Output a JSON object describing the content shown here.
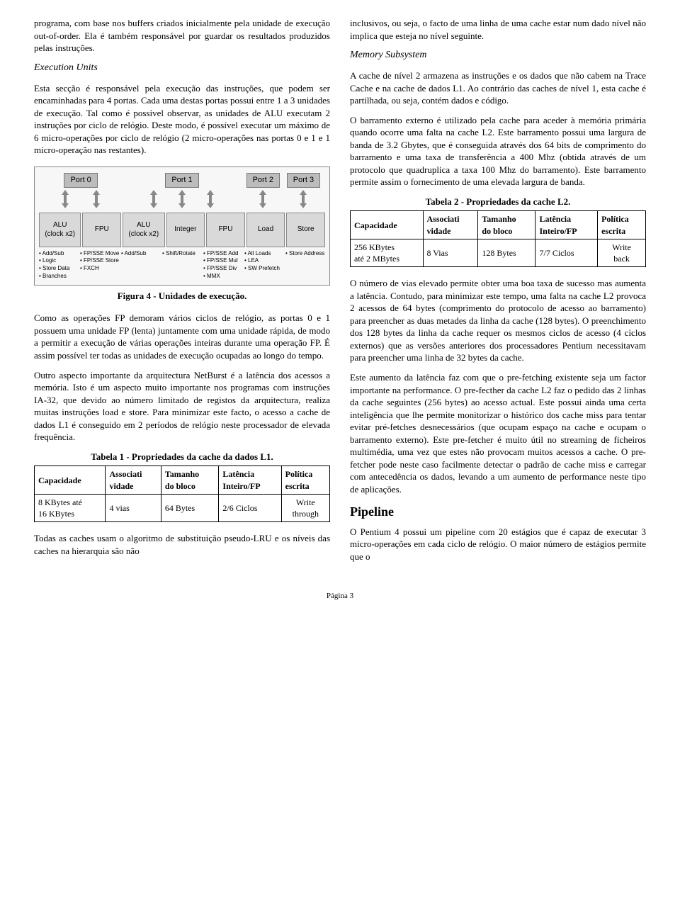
{
  "left": {
    "p1": "programa, com base nos buffers criados inicialmente pela unidade de execução out-of-order. Ela é também responsável por guardar os resultados produzidos pelas instruções.",
    "h_exec_units": "Execution Units",
    "p2": "Esta secção é responsável pela execução das instruções, que podem ser encaminhadas para 4 portas. Cada uma destas portas possui entre 1 a 3 unidades de execução. Tal como é possível observar, as unidades de ALU executam 2 instruções por ciclo de relógio. Deste modo, é possível executar um máximo de 6 micro-operações por ciclo de relógio (2 micro-operações nas portas 0 e 1 e 1 micro-operação nas restantes).",
    "fig": {
      "ports": [
        "Port 0",
        "Port 1",
        "Port 2",
        "Port 3"
      ],
      "units": [
        "ALU\n(clock x2)",
        "FPU",
        "ALU\n(clock x2)",
        "Integer",
        "FPU",
        "Load",
        "Store"
      ],
      "ops": [
        [
          "• Add/Sub",
          "• Logic",
          "• Store Data",
          "• Branches"
        ],
        [
          "• FP/SSE Move",
          "• FP/SSE Store",
          "• FXCH"
        ],
        [
          "• Add/Sub"
        ],
        [
          "• Shift/Rotate"
        ],
        [
          "• FP/SSE Add",
          "• FP/SSE Mul",
          "• FP/SSE Div",
          "• MMX"
        ],
        [
          "• All Loads",
          "• LEA",
          "• SW Prefetch"
        ],
        [
          "• Store Address"
        ]
      ],
      "caption": "Figura 4 - Unidades de execução."
    },
    "p3": "Como as operações FP demoram vários ciclos de relógio, as portas 0 e 1 possuem uma unidade FP (lenta) juntamente com uma unidade rápida, de modo a permitir a execução de várias operações inteiras durante uma operação FP. É assim possível ter todas as unidades de execução ocupadas ao longo do tempo.",
    "p4": "Outro aspecto importante da arquitectura NetBurst é a latência dos acessos a memória. Isto é um aspecto muito importante nos programas com instruções IA-32, que devido ao número limitado de registos da arquitectura, realiza muitas instruções load e store. Para minimizar este facto, o acesso a cache de dados L1 é conseguido em 2 períodos de relógio neste processador de elevada frequência.",
    "t1": {
      "caption": "Tabela 1 - Propriedades da cache da dados L1.",
      "headers": [
        "Capacidade",
        "Associati\nvidade",
        "Tamanho\ndo bloco",
        "Latência\nInteiro/FP",
        "Política\nescrita"
      ],
      "row": [
        "8 KBytes até\n16 KBytes",
        "4 vias",
        "64 Bytes",
        "2/6 Ciclos",
        "Write\nthrough"
      ]
    },
    "p5": "Todas as caches usam o algoritmo de substituição pseudo-LRU e os níveis das caches na hierarquia são não"
  },
  "right": {
    "p1": "inclusivos, ou seja, o facto de uma linha de uma cache estar num dado nível não implica que esteja no nível seguinte.",
    "h_mem": "Memory Subsystem",
    "p2": "A cache de nível 2 armazena as instruções e os dados que não cabem na Trace Cache e na cache de dados L1. Ao contrário das caches de nível 1, esta cache é partilhada, ou seja, contém dados e código.",
    "p3": "O barramento externo é utilizado pela cache para aceder à memória primária quando ocorre uma falta na cache L2. Este barramento possui uma largura de banda de 3.2 Gbytes, que é conseguida através dos 64 bits de comprimento do barramento e uma taxa de transferência a 400 Mhz (obtida através de um protocolo que quadruplica a taxa 100 Mhz do barramento). Este barramento permite assim o fornecimento de uma elevada largura de banda.",
    "t2": {
      "caption": "Tabela 2 - Propriedades da cache L2.",
      "headers": [
        "Capacidade",
        "Associati\nvidade",
        "Tamanho\ndo bloco",
        "Latência\nInteiro/FP",
        "Política\nescrita"
      ],
      "row": [
        "256 KBytes\naté 2 MBytes",
        "8 Vias",
        "128 Bytes",
        "7/7 Ciclos",
        "Write\nback"
      ]
    },
    "p4": "O número de vias elevado permite obter uma boa taxa de sucesso mas aumenta a latência. Contudo, para minimizar este tempo, uma falta na cache L2 provoca 2 acessos de 64 bytes (comprimento do protocolo de acesso ao barramento) para preencher as duas metades da linha da cache (128 bytes). O preenchimento dos 128 bytes da linha da cache requer os mesmos ciclos de acesso (4 ciclos externos) que as versões anteriores dos processadores Pentium necessitavam para preencher uma linha de 32 bytes da cache.",
    "p5": "Este aumento da latência faz com que o pre-fetching existente seja um factor importante na performance. O pre-fecther da cache L2 faz o pedido das 2 linhas da cache seguintes (256 bytes) ao acesso actual. Este possui ainda uma certa inteligência que lhe permite monitorizar o histórico dos cache miss para tentar evitar pré-fetches desnecessários (que ocupam espaço na cache e ocupam o barramento externo). Este pre-fetcher é muito útil no streaming de ficheiros multimédia, uma vez que estes não provocam muitos acessos a cache. O pre-fetcher pode neste caso facilmente detectar o padrão de cache miss e carregar com antecedência os dados, levando a um aumento de performance neste tipo de aplicações.",
    "h_pipeline": "Pipeline",
    "p6": "O Pentium 4 possui um pipeline com 20 estágios que é capaz de executar 3 micro-operações em cada ciclo de relógio. O maior número de estágios permite que o"
  },
  "page": "Página 3"
}
